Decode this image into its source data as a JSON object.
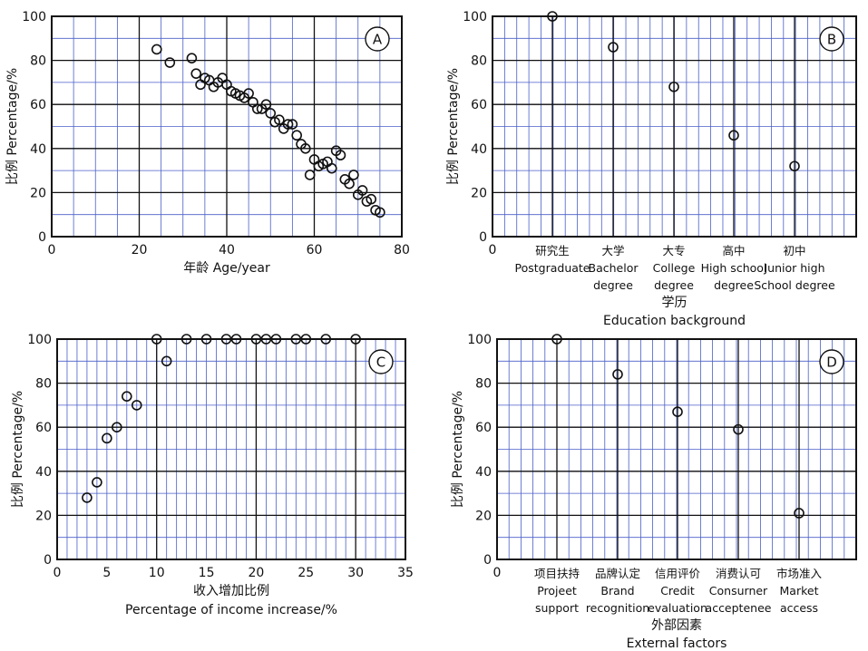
{
  "chart_data": [
    {
      "panel": "A",
      "type": "scatter",
      "xlabel": "年龄 Age/year",
      "ylabel": "比例 Percentage/%",
      "xlim": [
        0,
        80
      ],
      "ylim": [
        0,
        100
      ],
      "xticks": [
        0,
        20,
        40,
        60,
        80
      ],
      "yticks": [
        0,
        20,
        40,
        60,
        80,
        100
      ],
      "points": [
        [
          24,
          85
        ],
        [
          27,
          79
        ],
        [
          32,
          81
        ],
        [
          33,
          74
        ],
        [
          34,
          69
        ],
        [
          35,
          72
        ],
        [
          36,
          71
        ],
        [
          37,
          68
        ],
        [
          38,
          70
        ],
        [
          39,
          72
        ],
        [
          40,
          69
        ],
        [
          41,
          66
        ],
        [
          42,
          65
        ],
        [
          43,
          64
        ],
        [
          44,
          63
        ],
        [
          45,
          65
        ],
        [
          46,
          61
        ],
        [
          47,
          58
        ],
        [
          48,
          58
        ],
        [
          49,
          60
        ],
        [
          50,
          56
        ],
        [
          51,
          52
        ],
        [
          52,
          53
        ],
        [
          53,
          49
        ],
        [
          54,
          51
        ],
        [
          55,
          51
        ],
        [
          56,
          46
        ],
        [
          57,
          42
        ],
        [
          58,
          40
        ],
        [
          59,
          28
        ],
        [
          60,
          35
        ],
        [
          61,
          32
        ],
        [
          62,
          33
        ],
        [
          63,
          34
        ],
        [
          64,
          31
        ],
        [
          65,
          39
        ],
        [
          66,
          37
        ],
        [
          67,
          26
        ],
        [
          68,
          24
        ],
        [
          69,
          28
        ],
        [
          70,
          19
        ],
        [
          71,
          21
        ],
        [
          72,
          16
        ],
        [
          73,
          17
        ],
        [
          74,
          12
        ],
        [
          75,
          11
        ]
      ]
    },
    {
      "panel": "B",
      "type": "scatter",
      "xlabel": "学历",
      "xlabel2": "Education background",
      "ylabel": "比例 Percentage/%",
      "ylim": [
        0,
        100
      ],
      "yticks": [
        0,
        20,
        40,
        60,
        80,
        100
      ],
      "x_origin_label": "0",
      "categories": [
        [
          "研究生",
          "Postgraduate"
        ],
        [
          "大学",
          "Bachelor",
          "degree"
        ],
        [
          "大专",
          "College",
          "degree"
        ],
        [
          "高中",
          "High school",
          "degree"
        ],
        [
          "初中",
          "Junior high",
          "School degree"
        ]
      ],
      "values": [
        100,
        86,
        68,
        46,
        32
      ]
    },
    {
      "panel": "C",
      "type": "scatter",
      "xlabel": "收入增加比例",
      "xlabel2": "Percentage of income increase/%",
      "ylabel": "比例 Percentage/%",
      "xlim": [
        0,
        35
      ],
      "ylim": [
        0,
        100
      ],
      "xticks": [
        0,
        5,
        10,
        15,
        20,
        25,
        30,
        35
      ],
      "yticks": [
        0,
        20,
        40,
        60,
        80,
        100
      ],
      "points": [
        [
          3,
          28
        ],
        [
          4,
          35
        ],
        [
          5,
          55
        ],
        [
          6,
          60
        ],
        [
          7,
          74
        ],
        [
          8,
          70
        ],
        [
          10,
          100
        ],
        [
          11,
          90
        ],
        [
          13,
          100
        ],
        [
          15,
          100
        ],
        [
          17,
          100
        ],
        [
          18,
          100
        ],
        [
          20,
          100
        ],
        [
          21,
          100
        ],
        [
          22,
          100
        ],
        [
          24,
          100
        ],
        [
          25,
          100
        ],
        [
          27,
          100
        ],
        [
          30,
          100
        ]
      ]
    },
    {
      "panel": "D",
      "type": "scatter",
      "xlabel": "外部因素",
      "xlabel2": "External factors",
      "ylabel": "比例 Percentage/%",
      "ylim": [
        0,
        100
      ],
      "yticks": [
        0,
        20,
        40,
        60,
        80,
        100
      ],
      "x_origin_label": "0",
      "categories": [
        [
          "项目扶持",
          "Projeet",
          "support"
        ],
        [
          "品牌认定",
          "Brand",
          "recognition"
        ],
        [
          "信用评价",
          "Credit",
          "evaluation"
        ],
        [
          "消费认可",
          "Consurner",
          "acceptenee"
        ],
        [
          "市场准入",
          "Market",
          "access"
        ]
      ],
      "values": [
        100,
        84,
        67,
        59,
        21
      ]
    }
  ]
}
